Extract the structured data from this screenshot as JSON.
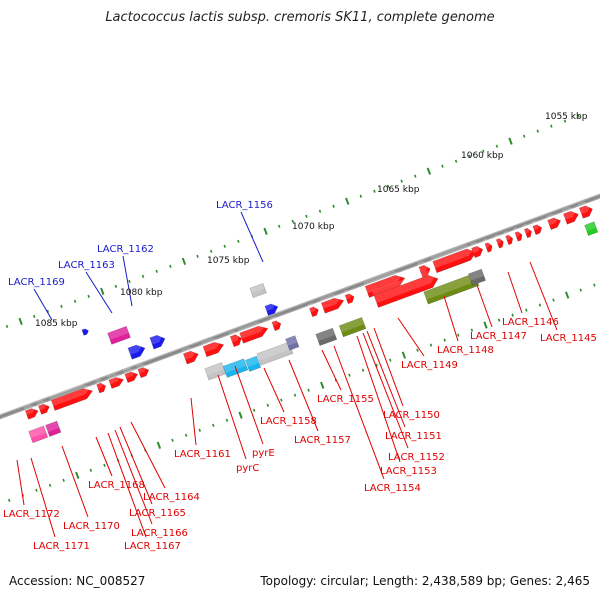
{
  "title": "Lactococcus lactis subsp. cremoris SK11, complete genome",
  "footer": {
    "accession": "Accession: NC_008527",
    "topology": "Topology: circular; Length: 2,438,589 bp; Genes: 2,465"
  },
  "colors": {
    "backbone": "#8a8a8a",
    "tick": "#2e8b2e",
    "label_forward": "#1a1acc",
    "label_reverse": "#e00000",
    "red": "#ff1010",
    "magenta": "#e0209a",
    "pink": "#ff4fa8",
    "blue": "#1a1aee",
    "cyan": "#19b6ee",
    "light_gray": "#c4c4c4",
    "dark_gray": "#6a6a6a",
    "slate": "#7070a8",
    "olive": "#6e8c14",
    "green": "#22cc22"
  },
  "ruler": [
    {
      "label": "1055 kbp"
    },
    {
      "label": "1060 kbp"
    },
    {
      "label": "1065 kbp"
    },
    {
      "label": "1070 kbp"
    },
    {
      "label": "1075 kbp"
    },
    {
      "label": "1080 kbp"
    },
    {
      "label": "1085 kbp"
    }
  ],
  "forward_labels": [
    {
      "label": "LACR_1156"
    },
    {
      "label": "LACR_1162"
    },
    {
      "label": "LACR_1163"
    },
    {
      "label": "LACR_1169"
    }
  ],
  "reverse_labels": [
    {
      "label": "LACR_1145"
    },
    {
      "label": "LACR_1146"
    },
    {
      "label": "LACR_1147"
    },
    {
      "label": "LACR_1148"
    },
    {
      "label": "LACR_1149"
    },
    {
      "label": "LACR_1150"
    },
    {
      "label": "LACR_1151"
    },
    {
      "label": "LACR_1152"
    },
    {
      "label": "LACR_1153"
    },
    {
      "label": "LACR_1154"
    },
    {
      "label": "LACR_1155"
    },
    {
      "label": "LACR_1157"
    },
    {
      "label": "LACR_1158"
    },
    {
      "label": "pyrE"
    },
    {
      "label": "pyrC"
    },
    {
      "label": "LACR_1161"
    },
    {
      "label": "LACR_1164"
    },
    {
      "label": "LACR_1165"
    },
    {
      "label": "LACR_1166"
    },
    {
      "label": "LACR_1167"
    },
    {
      "label": "LACR_1168"
    },
    {
      "label": "LACR_1170"
    },
    {
      "label": "LACR_1171"
    },
    {
      "label": "LACR_1172"
    }
  ]
}
